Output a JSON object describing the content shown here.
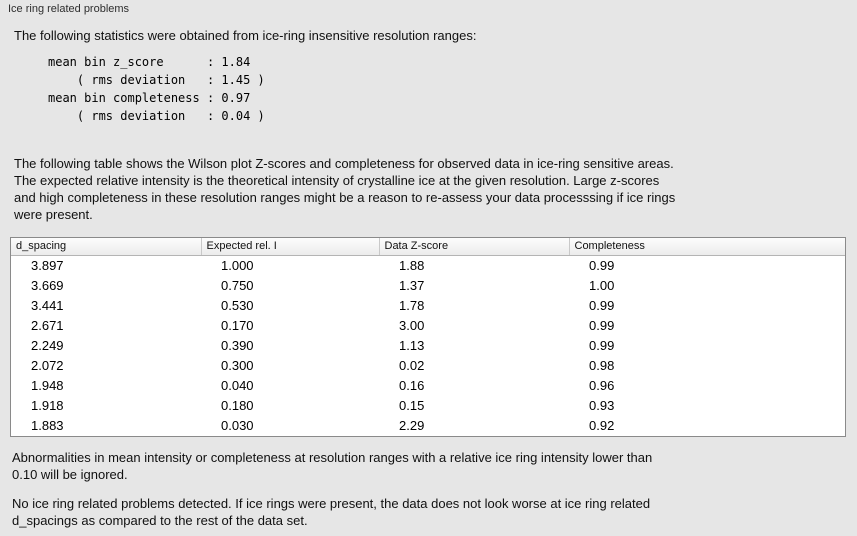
{
  "panel": {
    "title": "Ice ring related problems"
  },
  "intro": "The following statistics were obtained from ice-ring insensitive resolution ranges:",
  "stats_block": "mean bin z_score      : 1.84\n    ( rms deviation   : 1.45 )\nmean bin completeness : 0.97\n    ( rms deviation   : 0.04 )",
  "description": "The following table shows the Wilson plot Z-scores and completeness for observed data in ice-ring sensitive areas.\nThe expected relative intensity is the theoretical intensity of crystalline ice at the given resolution. Large z-scores\nand high completeness in these resolution ranges might be a reason to re-assess your data processsing if ice rings\nwere present.",
  "table": {
    "columns": [
      "d_spacing",
      "Expected rel. I",
      "Data Z-score",
      "Completeness"
    ],
    "rows": [
      [
        "3.897",
        "1.000",
        "1.88",
        "0.99"
      ],
      [
        "3.669",
        "0.750",
        "1.37",
        "1.00"
      ],
      [
        "3.441",
        "0.530",
        "1.78",
        "0.99"
      ],
      [
        "2.671",
        "0.170",
        "3.00",
        "0.99"
      ],
      [
        "2.249",
        "0.390",
        "1.13",
        "0.99"
      ],
      [
        "2.072",
        "0.300",
        "0.02",
        "0.98"
      ],
      [
        "1.948",
        "0.040",
        "0.16",
        "0.96"
      ],
      [
        "1.918",
        "0.180",
        "0.15",
        "0.93"
      ],
      [
        "1.883",
        "0.030",
        "2.29",
        "0.92"
      ]
    ]
  },
  "note_ignore": "Abnormalities in mean intensity or completeness at resolution ranges with a relative ice ring intensity lower than\n0.10 will be ignored.",
  "conclusion": "No ice ring related problems detected. If ice rings were present, the data does not look worse at ice ring related\nd_spacings as compared to the rest of the data set."
}
